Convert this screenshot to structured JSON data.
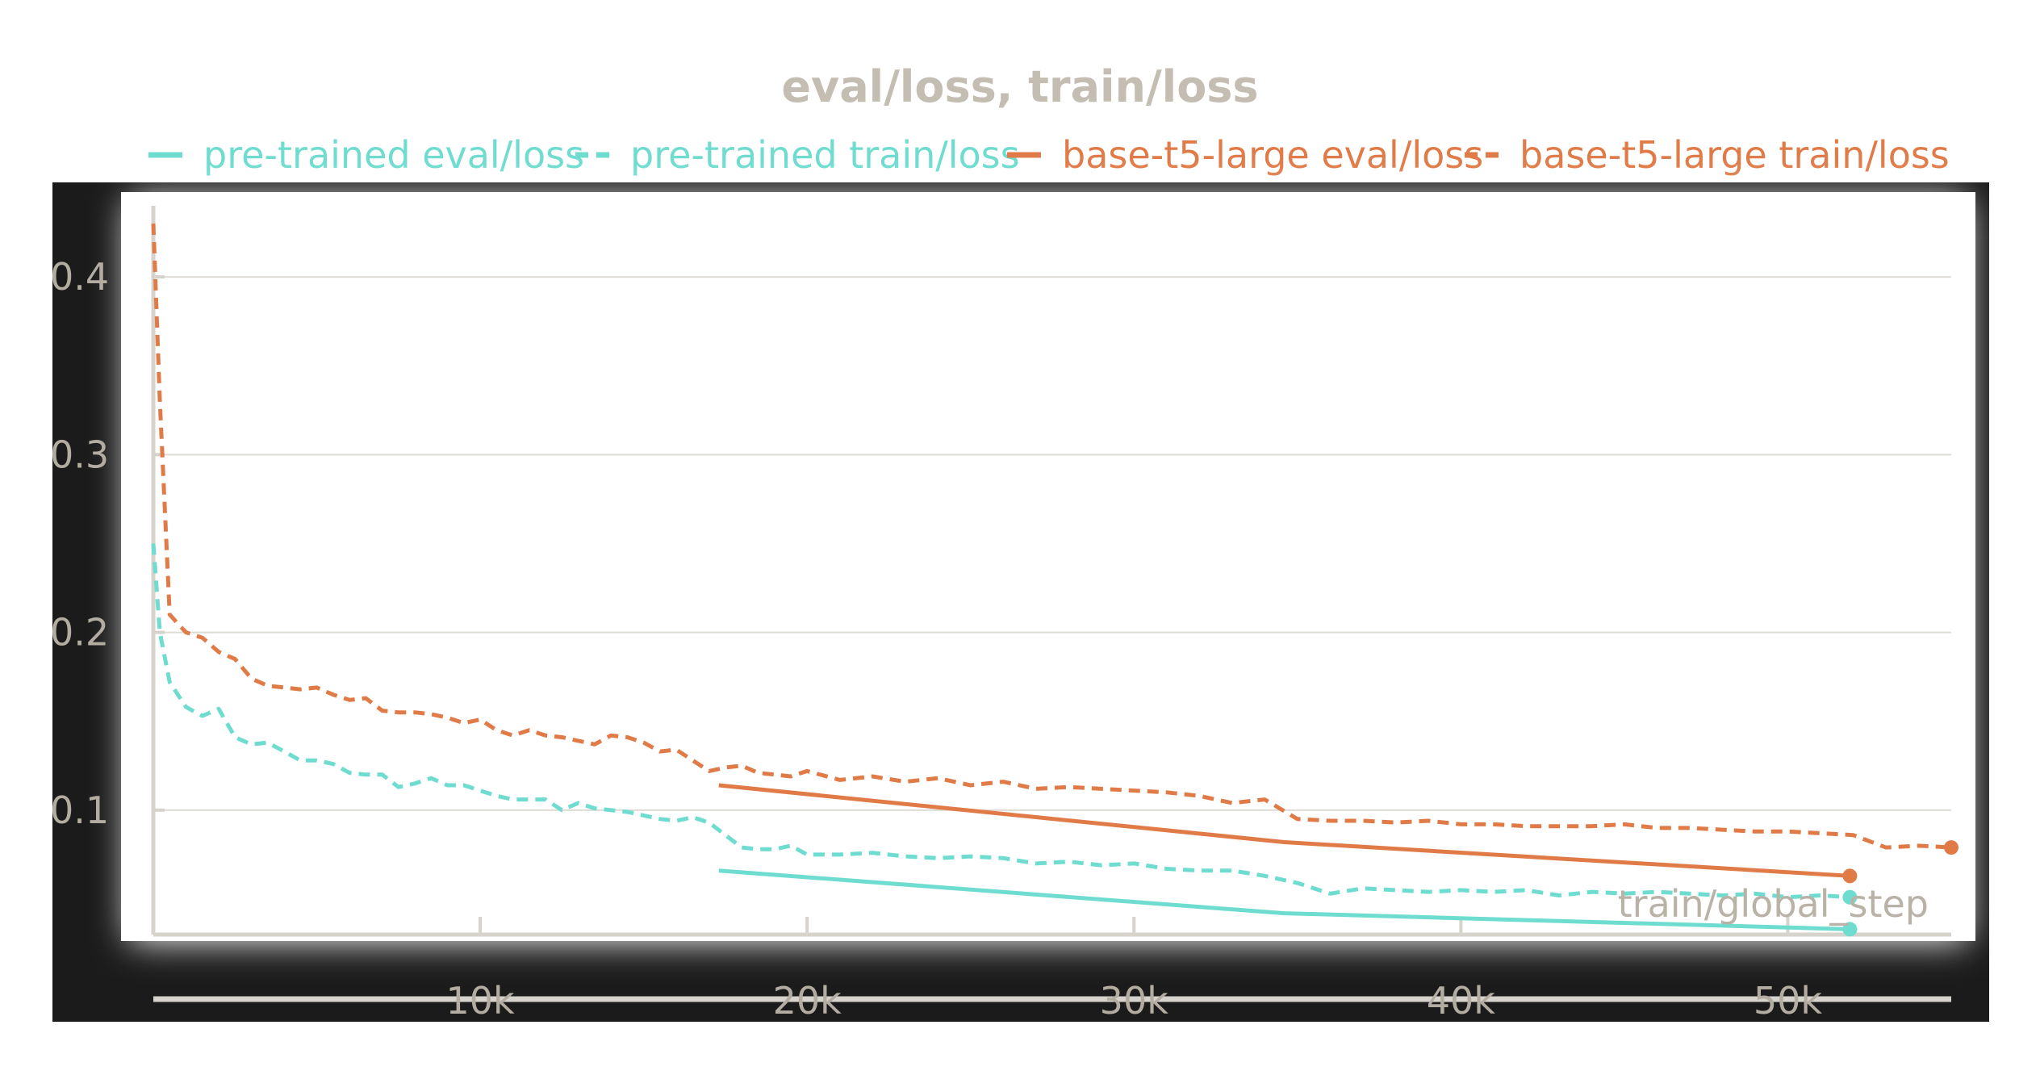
{
  "chart_data": {
    "type": "line",
    "title": "eval/loss, train/loss",
    "xlabel": "train/global_step",
    "ylabel": "",
    "xlim": [
      0,
      55000
    ],
    "ylim": [
      0.03,
      0.44
    ],
    "x_ticks": [
      {
        "value": 10000,
        "label": "10k"
      },
      {
        "value": 20000,
        "label": "20k"
      },
      {
        "value": 30000,
        "label": "30k"
      },
      {
        "value": 40000,
        "label": "40k"
      },
      {
        "value": 50000,
        "label": "50k"
      }
    ],
    "y_ticks": [
      {
        "value": 0.1,
        "label": "0.1"
      },
      {
        "value": 0.2,
        "label": "0.2"
      },
      {
        "value": 0.3,
        "label": "0.3"
      },
      {
        "value": 0.4,
        "label": "0.4"
      }
    ],
    "grid": true,
    "legend_position": "top",
    "series": [
      {
        "name": "pre-trained eval/loss",
        "color": "#6fdcd0",
        "dash": false,
        "end_marker": true,
        "x": [
          17300,
          34600,
          51900
        ],
        "y": [
          0.066,
          0.042,
          0.033
        ]
      },
      {
        "name": "pre-trained train/loss",
        "color": "#6fdcd0",
        "dash": true,
        "end_marker": true,
        "x": [
          0,
          200,
          500,
          1000,
          1500,
          2000,
          2500,
          3000,
          3500,
          4000,
          4500,
          5000,
          5500,
          6000,
          6500,
          7000,
          7500,
          8000,
          8500,
          9000,
          9500,
          10000,
          10500,
          11000,
          11500,
          12000,
          12500,
          13000,
          13500,
          14000,
          14500,
          15000,
          15500,
          16000,
          16500,
          17000,
          17500,
          18000,
          18500,
          19000,
          19500,
          20000,
          21000,
          22000,
          23000,
          24000,
          25000,
          26000,
          27000,
          28000,
          29000,
          30000,
          31000,
          32000,
          33000,
          34000,
          35000,
          36000,
          37000,
          38000,
          39000,
          40000,
          41000,
          42000,
          43000,
          44000,
          45000,
          46000,
          47000,
          48000,
          49000,
          50000,
          51000,
          51900
        ],
        "y": [
          0.25,
          0.2,
          0.172,
          0.158,
          0.153,
          0.157,
          0.141,
          0.137,
          0.138,
          0.133,
          0.128,
          0.128,
          0.126,
          0.121,
          0.12,
          0.12,
          0.113,
          0.115,
          0.118,
          0.114,
          0.114,
          0.111,
          0.108,
          0.106,
          0.106,
          0.106,
          0.1,
          0.104,
          0.101,
          0.1,
          0.099,
          0.097,
          0.095,
          0.094,
          0.096,
          0.093,
          0.086,
          0.079,
          0.078,
          0.078,
          0.08,
          0.075,
          0.075,
          0.076,
          0.074,
          0.073,
          0.074,
          0.073,
          0.07,
          0.071,
          0.069,
          0.07,
          0.067,
          0.066,
          0.066,
          0.063,
          0.059,
          0.053,
          0.056,
          0.055,
          0.054,
          0.055,
          0.054,
          0.055,
          0.052,
          0.054,
          0.053,
          0.054,
          0.053,
          0.052,
          0.053,
          0.051,
          0.052,
          0.051
        ]
      },
      {
        "name": "base-t5-large eval/loss",
        "color": "#e07b48",
        "dash": false,
        "end_marker": true,
        "x": [
          17300,
          34600,
          51900
        ],
        "y": [
          0.114,
          0.082,
          0.063
        ]
      },
      {
        "name": "base-t5-large train/loss",
        "color": "#e07b48",
        "dash": true,
        "end_marker": true,
        "x": [
          0,
          200,
          500,
          1000,
          1500,
          2000,
          2500,
          3000,
          3500,
          4000,
          4500,
          5000,
          5500,
          6000,
          6500,
          7000,
          7500,
          8000,
          8500,
          9000,
          9500,
          10000,
          10500,
          11000,
          11500,
          12000,
          12500,
          13000,
          13500,
          14000,
          14500,
          15000,
          15500,
          16000,
          16500,
          17000,
          17500,
          18000,
          18500,
          19000,
          19500,
          20000,
          21000,
          22000,
          23000,
          24000,
          25000,
          26000,
          27000,
          28000,
          29000,
          30000,
          31000,
          32000,
          33000,
          34000,
          35000,
          36000,
          37000,
          38000,
          39000,
          40000,
          41000,
          42000,
          43000,
          44000,
          45000,
          46000,
          47000,
          48000,
          49000,
          50000,
          51000,
          52000,
          53000,
          54000,
          55000
        ],
        "y": [
          0.43,
          0.33,
          0.21,
          0.2,
          0.197,
          0.189,
          0.185,
          0.174,
          0.17,
          0.169,
          0.168,
          0.169,
          0.165,
          0.162,
          0.163,
          0.156,
          0.155,
          0.155,
          0.154,
          0.152,
          0.149,
          0.151,
          0.145,
          0.142,
          0.145,
          0.142,
          0.141,
          0.139,
          0.137,
          0.142,
          0.141,
          0.138,
          0.133,
          0.134,
          0.128,
          0.122,
          0.124,
          0.125,
          0.121,
          0.12,
          0.119,
          0.122,
          0.117,
          0.119,
          0.116,
          0.118,
          0.114,
          0.116,
          0.112,
          0.113,
          0.112,
          0.111,
          0.11,
          0.108,
          0.104,
          0.106,
          0.095,
          0.094,
          0.094,
          0.093,
          0.094,
          0.092,
          0.092,
          0.091,
          0.091,
          0.091,
          0.092,
          0.09,
          0.09,
          0.089,
          0.088,
          0.088,
          0.087,
          0.086,
          0.079,
          0.08,
          0.079
        ]
      }
    ]
  }
}
